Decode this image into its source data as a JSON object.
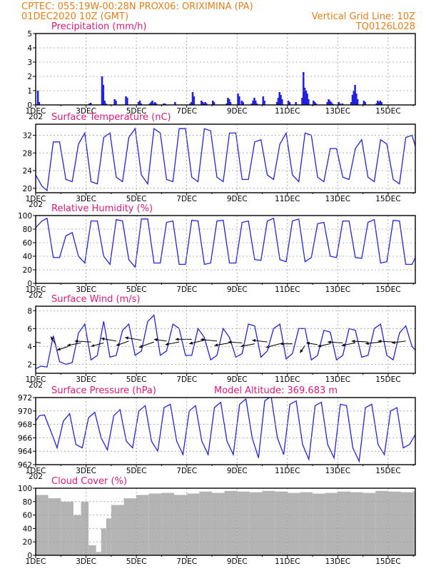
{
  "header": {
    "line1_left": "CPTEC:   055:19W-00:28N  PROX06: ORIXIMINA (PA)",
    "line2_left": "01DEC2020 10Z (GMT)",
    "line2_right": "Vertical Grid Line: 10Z",
    "line3_right": "TQ0126L028"
  },
  "colors": {
    "header": "#e87f17",
    "panel_title": "#e0187a",
    "series": "#2222dd",
    "cloud": "#b4b4b4",
    "grid": "#9a9a9a"
  },
  "x_axis": {
    "tick_labels": [
      "1DEC",
      "3DEC",
      "5DEC",
      "7DEC",
      "9DEC",
      "11DEC",
      "13DEC",
      "15DEC"
    ],
    "tick_days": [
      0,
      2,
      4,
      6,
      8,
      10,
      12,
      14
    ],
    "range_days": [
      0,
      15.08
    ],
    "cutoff_label": "202"
  },
  "chart_data": [
    {
      "id": "precip",
      "type": "bar",
      "title": "Precipitation (mm/h)",
      "ylim": [
        0,
        5
      ],
      "yticks": [
        0,
        1,
        2,
        3,
        4,
        5
      ],
      "series": [
        {
          "x": [
            0.05,
            0.1,
            2.1,
            2.15,
            2.6,
            2.65,
            2.7,
            2.75,
            3.1,
            3.15,
            3.55,
            3.6,
            4.05,
            4.1,
            4.15,
            4.5,
            4.55,
            4.6,
            4.65,
            4.7,
            4.75,
            5.05,
            5.1,
            5.5,
            6.1,
            6.15,
            6.2,
            6.25,
            6.55,
            6.6,
            6.65,
            6.7,
            6.75,
            7.0,
            7.05,
            7.55,
            7.6,
            7.65,
            7.7,
            8.0,
            8.05,
            8.15,
            8.2,
            8.55,
            8.6,
            8.65,
            8.7,
            8.75,
            9.0,
            9.05,
            9.55,
            9.6,
            9.65,
            9.7,
            9.75,
            10.0,
            10.05,
            10.3,
            10.55,
            10.6,
            10.65,
            10.7,
            10.75,
            10.8,
            11.0,
            11.05,
            11.1,
            11.55,
            11.6,
            11.65,
            11.7,
            11.75,
            12.0,
            12.05,
            12.15,
            12.5,
            12.55,
            12.6,
            12.65,
            12.7,
            12.75,
            13.0,
            13.05,
            13.5,
            13.55,
            13.6,
            13.65,
            13.7
          ],
          "values": [
            1.0,
            0.2,
            0.1,
            0.15,
            2.0,
            1.4,
            0.3,
            0.1,
            0.4,
            0.3,
            0.6,
            0.5,
            0.2,
            0.3,
            0.1,
            0.1,
            0.2,
            0.3,
            0.1,
            0.2,
            0.1,
            0.1,
            0.1,
            0.2,
            0.1,
            0.2,
            0.9,
            0.6,
            0.3,
            0.2,
            0.1,
            0.2,
            0.1,
            0.3,
            0.2,
            0.1,
            0.5,
            0.4,
            0.2,
            0.8,
            0.6,
            0.3,
            0.2,
            0.1,
            0.3,
            0.5,
            0.3,
            0.1,
            0.6,
            0.3,
            0.2,
            0.5,
            0.9,
            0.7,
            0.4,
            0.3,
            0.2,
            0.2,
            0.5,
            2.3,
            1.2,
            1.0,
            0.8,
            0.4,
            0.3,
            0.2,
            0.1,
            0.2,
            0.4,
            0.3,
            0.2,
            0.1,
            0.2,
            0.1,
            0.1,
            0.2,
            0.7,
            1.0,
            1.4,
            0.8,
            0.4,
            0.3,
            0.2,
            0.1,
            0.3,
            0.2,
            0.3,
            0.2
          ]
        }
      ]
    },
    {
      "id": "temperature",
      "type": "line",
      "title": "Surface Temperature (nC)",
      "ylim": [
        19,
        34.5
      ],
      "yticks": [
        20,
        24,
        28,
        32
      ],
      "series": [
        {
          "x": [
            0,
            0.25,
            0.45,
            0.7,
            0.95,
            1.2,
            1.45,
            1.7,
            1.95,
            2.2,
            2.45,
            2.7,
            2.95,
            3.2,
            3.45,
            3.7,
            3.95,
            4.2,
            4.45,
            4.7,
            4.95,
            5.2,
            5.45,
            5.7,
            5.95,
            6.2,
            6.45,
            6.7,
            6.95,
            7.2,
            7.45,
            7.7,
            7.95,
            8.2,
            8.45,
            8.7,
            8.95,
            9.2,
            9.45,
            9.7,
            9.95,
            10.2,
            10.45,
            10.7,
            10.95,
            11.2,
            11.45,
            11.7,
            11.95,
            12.2,
            12.45,
            12.7,
            12.95,
            13.2,
            13.45,
            13.7,
            13.95,
            14.2,
            14.45,
            14.7,
            14.95,
            15.08
          ],
          "values": [
            23,
            20.5,
            19.5,
            30.5,
            30.5,
            22,
            21.5,
            30,
            32.5,
            21.5,
            21,
            31.5,
            32.5,
            22.5,
            21.5,
            31.5,
            33.5,
            23,
            21,
            33.5,
            32.5,
            22,
            21.5,
            33.5,
            33.5,
            22.5,
            21.5,
            33.5,
            33,
            22.5,
            21.5,
            32.5,
            32.5,
            22,
            22,
            30.5,
            31,
            23,
            22,
            30,
            32.5,
            23,
            21.5,
            32.5,
            32,
            22.5,
            21.5,
            29,
            29,
            22.5,
            22,
            29,
            31,
            22.5,
            21.5,
            31,
            30,
            22,
            21,
            31.5,
            32,
            29.5
          ]
        }
      ]
    },
    {
      "id": "humidity",
      "type": "line",
      "title": "Relative Humidity (%)",
      "ylim": [
        0,
        100
      ],
      "yticks": [
        0,
        20,
        40,
        60,
        80,
        100
      ],
      "series": [
        {
          "x": [
            0,
            0.25,
            0.45,
            0.7,
            0.95,
            1.2,
            1.45,
            1.7,
            1.95,
            2.2,
            2.45,
            2.7,
            2.95,
            3.2,
            3.45,
            3.7,
            3.95,
            4.2,
            4.45,
            4.7,
            4.95,
            5.2,
            5.45,
            5.7,
            5.95,
            6.2,
            6.45,
            6.7,
            6.95,
            7.2,
            7.45,
            7.7,
            7.95,
            8.2,
            8.45,
            8.7,
            8.95,
            9.2,
            9.45,
            9.7,
            9.95,
            10.2,
            10.45,
            10.7,
            10.95,
            11.2,
            11.45,
            11.7,
            11.95,
            12.2,
            12.45,
            12.7,
            12.95,
            13.2,
            13.45,
            13.7,
            13.95,
            14.2,
            14.45,
            14.7,
            14.95,
            15.08
          ],
          "values": [
            82,
            92,
            96,
            38,
            38,
            70,
            75,
            40,
            30,
            92,
            92,
            40,
            28,
            94,
            92,
            35,
            24,
            95,
            95,
            30,
            30,
            90,
            92,
            28,
            28,
            93,
            92,
            28,
            30,
            92,
            93,
            30,
            30,
            90,
            92,
            35,
            34,
            92,
            96,
            35,
            32,
            92,
            95,
            32,
            38,
            88,
            90,
            40,
            38,
            92,
            92,
            38,
            37,
            90,
            94,
            30,
            32,
            93,
            92,
            28,
            28,
            38
          ]
        }
      ]
    },
    {
      "id": "wind",
      "type": "line",
      "title": "Surface Wind (m/s)",
      "ylim": [
        1,
        8.5
      ],
      "yticks": [
        2,
        4,
        6,
        8
      ],
      "series": [
        {
          "x": [
            0,
            0.2,
            0.45,
            0.7,
            0.95,
            1.2,
            1.45,
            1.7,
            1.95,
            2.2,
            2.45,
            2.7,
            2.95,
            3.2,
            3.45,
            3.7,
            3.95,
            4.2,
            4.45,
            4.7,
            4.95,
            5.2,
            5.45,
            5.7,
            5.95,
            6.2,
            6.45,
            6.7,
            6.95,
            7.2,
            7.45,
            7.7,
            7.95,
            8.2,
            8.45,
            8.7,
            8.95,
            9.2,
            9.45,
            9.7,
            9.95,
            10.2,
            10.45,
            10.7,
            10.95,
            11.2,
            11.45,
            11.7,
            11.95,
            12.2,
            12.45,
            12.7,
            12.95,
            13.2,
            13.45,
            13.7,
            13.95,
            14.2,
            14.45,
            14.7,
            14.95,
            15.08
          ],
          "values": [
            1.5,
            1.8,
            1.7,
            5.2,
            2.3,
            2.0,
            2.2,
            5.5,
            6.5,
            2.5,
            3.0,
            6.8,
            2.8,
            3.0,
            5.8,
            6.5,
            3.0,
            3.5,
            6.8,
            7.5,
            3.0,
            3.5,
            6.5,
            6.0,
            3.0,
            3.0,
            6.0,
            5.0,
            2.5,
            3.0,
            6.0,
            5.0,
            2.8,
            3.2,
            6.5,
            6.3,
            2.8,
            3.5,
            6.0,
            6.5,
            2.6,
            3.2,
            6.0,
            6.0,
            2.5,
            3.0,
            5.8,
            5.6,
            2.5,
            3.0,
            6.0,
            5.8,
            2.8,
            3.0,
            6.0,
            6.5,
            3.0,
            2.5,
            5.5,
            6.3,
            4.0,
            3.6
          ]
        }
      ],
      "arrows": {
        "x": [
          0.2,
          0.8,
          1.3,
          1.8,
          2.2,
          2.7,
          3.2,
          3.7,
          4.2,
          4.7,
          5.2,
          5.7,
          6.2,
          6.7,
          7.2,
          7.7,
          8.2,
          8.7,
          9.2,
          9.7,
          10.2,
          10.7,
          11.2,
          11.7,
          12.2,
          12.7,
          13.2,
          13.7,
          14.2,
          14.7
        ],
        "y": [
          4.4,
          4.2,
          4.0,
          4.4,
          4.5,
          4.4,
          4.6,
          4.6,
          4.7,
          4.5,
          4.6,
          4.5,
          4.8,
          4.7,
          4.6,
          4.4,
          4.4,
          4.3,
          4.5,
          4.3,
          4.3,
          4.1,
          4.2,
          4.3,
          4.4,
          4.4,
          4.5,
          4.5,
          4.5,
          4.6
        ],
        "dx": [
          -1.2,
          -0.4,
          -0.9,
          -1.1,
          -1.3,
          -1.0,
          -1.2,
          -1.0,
          -1.3,
          -1.2,
          -1.0,
          -1.1,
          -1.3,
          -1.2,
          -1.3,
          -1.2,
          -1.1,
          -1.1,
          -1.2,
          -1.1,
          -1.0,
          -0.4,
          -0.9,
          -1.0,
          -1.2,
          -1.1,
          -1.3,
          -1.2,
          -1.2,
          -1.1
        ],
        "dy": [
          0.2,
          0.9,
          -0.4,
          -0.3,
          0.1,
          -0.4,
          0.3,
          -0.5,
          0.3,
          -0.6,
          0.2,
          -0.3,
          0.0,
          -0.4,
          0.2,
          -0.3,
          0.1,
          -0.3,
          0.2,
          -0.4,
          0.0,
          -0.8,
          0.2,
          -0.3,
          0.1,
          -0.3,
          0.1,
          -0.2,
          0.1,
          -0.2
        ]
      }
    },
    {
      "id": "pressure",
      "type": "line",
      "title": "Surface Pressure (hPa)",
      "annotation": "Model Altitude: 369.683  m",
      "ylim": [
        962,
        972
      ],
      "yticks": [
        962,
        964,
        966,
        968,
        970,
        972
      ],
      "series": [
        {
          "x": [
            0,
            0.15,
            0.35,
            0.6,
            0.85,
            1.1,
            1.35,
            1.6,
            1.85,
            2.1,
            2.35,
            2.6,
            2.85,
            3.1,
            3.35,
            3.6,
            3.85,
            4.1,
            4.35,
            4.6,
            4.85,
            5.1,
            5.35,
            5.6,
            5.85,
            6.1,
            6.35,
            6.6,
            6.85,
            7.1,
            7.35,
            7.6,
            7.85,
            8.1,
            8.35,
            8.6,
            8.85,
            9.1,
            9.35,
            9.6,
            9.85,
            10.1,
            10.35,
            10.6,
            10.85,
            11.1,
            11.35,
            11.6,
            11.85,
            12.1,
            12.35,
            12.6,
            12.85,
            13.1,
            13.35,
            13.6,
            13.85,
            14.1,
            14.35,
            14.6,
            14.85,
            15.08
          ],
          "values": [
            968.5,
            969.3,
            969.4,
            967.0,
            964.5,
            968.5,
            969.6,
            965.0,
            964.5,
            969.0,
            969.8,
            966.0,
            964.2,
            969.3,
            970.2,
            965.5,
            964.5,
            970.0,
            970.8,
            965.5,
            964.0,
            970.5,
            971.0,
            965.5,
            963.5,
            970.0,
            970.8,
            965.5,
            963.5,
            970.5,
            971.3,
            965.5,
            963.5,
            971.0,
            971.8,
            966.0,
            963.0,
            971.5,
            972.2,
            966.0,
            963.5,
            971.0,
            971.5,
            965.0,
            962.8,
            970.8,
            971.3,
            965.0,
            963.0,
            971.0,
            970.8,
            964.5,
            962.5,
            970.5,
            971.0,
            965.0,
            963.5,
            970.0,
            970.5,
            964.5,
            965.0,
            966.5
          ]
        }
      ]
    },
    {
      "id": "cloud",
      "type": "bar",
      "title": "Cloud Cover (%)",
      "ylim": [
        0,
        100
      ],
      "yticks": [
        0,
        20,
        40,
        60,
        80,
        100
      ],
      "series": [
        {
          "x": [
            0,
            0.5,
            1.0,
            1.5,
            1.8,
            2.1,
            2.4,
            2.6,
            2.8,
            3.0,
            3.5,
            4.0,
            4.5,
            5.0,
            5.5,
            6.0,
            6.5,
            7.0,
            7.5,
            8.0,
            8.5,
            9.0,
            9.5,
            10.0,
            10.5,
            11.0,
            11.5,
            12.0,
            12.5,
            13.0,
            13.5,
            14.0,
            14.5,
            15.0
          ],
          "values": [
            90,
            85,
            80,
            60,
            80,
            15,
            5,
            40,
            55,
            75,
            85,
            90,
            92,
            93,
            90,
            92,
            95,
            93,
            96,
            95,
            94,
            96,
            95,
            93,
            94,
            92,
            93,
            95,
            94,
            93,
            96,
            95,
            94,
            96
          ]
        }
      ]
    }
  ]
}
